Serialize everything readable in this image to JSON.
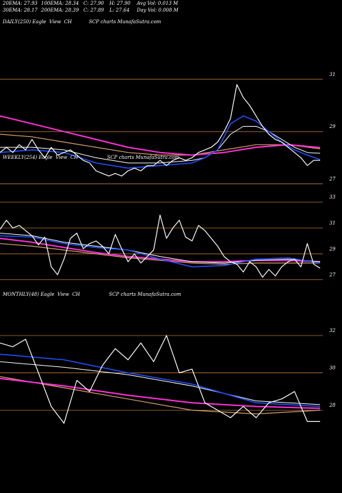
{
  "header": {
    "row1": [
      "20EMA: 27.93",
      "100EMA: 28.34",
      "C: 27.90",
      "H: 27.90",
      "Avg Vol: 0.013 M"
    ],
    "row2": [
      "30EMA: 28.17",
      "200EMA: 28.39",
      "C: 27.89",
      "L: 27.64",
      "Day Vol: 0.008 M"
    ],
    "title_left": "DAILY(250) Eagle  View  CH",
    "title_right": "SCP charts MunafaSutra.com"
  },
  "colors": {
    "background": "#000000",
    "price": "#ffffff",
    "ema20": "#1e50ff",
    "ema30": "#ffffff",
    "ema100": "#d4a06a",
    "ema200": "#ff2fd6",
    "ema_alt": "#8b5a2b",
    "gridline": "#b9773a"
  },
  "chart_data": [
    {
      "type": "line",
      "name": "daily",
      "title": "DAILY(250) Eagle  View  CH                    SCP charts MunafaSutra.com",
      "yticks": [
        31,
        29,
        27
      ],
      "ylim": [
        26.7,
        32.2
      ],
      "xlim": [
        0,
        100
      ],
      "grid": true,
      "series": [
        {
          "name": "price",
          "x": [
            0,
            2,
            4,
            6,
            8,
            10,
            12,
            14,
            16,
            18,
            20,
            22,
            24,
            26,
            28,
            30,
            32,
            34,
            36,
            38,
            40,
            42,
            44,
            46,
            48,
            50,
            52,
            54,
            56,
            58,
            60,
            62,
            64,
            66,
            68,
            70,
            72,
            74,
            76,
            78,
            80,
            82,
            84,
            86,
            88,
            90,
            92,
            94,
            96,
            98,
            100
          ],
          "y": [
            28.2,
            28.4,
            28.2,
            28.5,
            28.3,
            28.7,
            28.3,
            28.0,
            28.4,
            28.1,
            28.2,
            28.3,
            28.1,
            27.9,
            27.8,
            27.5,
            27.4,
            27.3,
            27.4,
            27.3,
            27.5,
            27.6,
            27.5,
            27.7,
            27.7,
            27.9,
            27.7,
            27.9,
            28.0,
            27.9,
            28.0,
            28.2,
            28.3,
            28.4,
            28.6,
            29.0,
            29.5,
            30.8,
            30.3,
            30.0,
            29.6,
            29.2,
            28.9,
            28.7,
            28.6,
            28.4,
            28.2,
            28.0,
            27.7,
            27.9,
            27.9
          ]
        },
        {
          "name": "ema20",
          "x": [
            0,
            10,
            20,
            30,
            40,
            50,
            60,
            64,
            68,
            72,
            76,
            80,
            84,
            88,
            92,
            96,
            100
          ],
          "y": [
            28.2,
            28.3,
            28.2,
            27.8,
            27.6,
            27.7,
            27.8,
            28.0,
            28.3,
            29.3,
            29.6,
            29.4,
            29.0,
            28.6,
            28.3,
            28.1,
            27.93
          ]
        },
        {
          "name": "ema30",
          "x": [
            0,
            10,
            20,
            30,
            40,
            50,
            60,
            64,
            68,
            72,
            76,
            80,
            84,
            88,
            92,
            96,
            100
          ],
          "y": [
            28.4,
            28.4,
            28.3,
            28.0,
            27.8,
            27.8,
            27.9,
            28.0,
            28.3,
            28.9,
            29.2,
            29.2,
            29.0,
            28.7,
            28.4,
            28.2,
            28.17
          ]
        },
        {
          "name": "ema100",
          "x": [
            0,
            10,
            20,
            30,
            40,
            50,
            60,
            70,
            80,
            90,
            100
          ],
          "y": [
            28.9,
            28.8,
            28.6,
            28.4,
            28.2,
            28.1,
            28.1,
            28.3,
            28.5,
            28.5,
            28.34
          ]
        },
        {
          "name": "ema200",
          "x": [
            0,
            10,
            20,
            30,
            40,
            50,
            60,
            70,
            80,
            90,
            100
          ],
          "y": [
            29.6,
            29.3,
            29.0,
            28.7,
            28.4,
            28.2,
            28.1,
            28.2,
            28.4,
            28.5,
            28.39
          ]
        }
      ]
    },
    {
      "type": "line",
      "name": "weekly",
      "title": "WEEKLY(254) Eagle  View  CH                   SCP charts MunafaSutra.com",
      "yticks": [
        33,
        31,
        29,
        27
      ],
      "ylim": [
        26.4,
        33.8
      ],
      "xlim": [
        0,
        100
      ],
      "grid": true,
      "series": [
        {
          "name": "price",
          "x": [
            0,
            2,
            4,
            6,
            8,
            10,
            12,
            14,
            16,
            18,
            20,
            22,
            24,
            26,
            28,
            30,
            32,
            34,
            36,
            38,
            40,
            42,
            44,
            46,
            48,
            50,
            52,
            54,
            56,
            58,
            60,
            62,
            64,
            66,
            68,
            70,
            72,
            74,
            76,
            78,
            80,
            82,
            84,
            86,
            88,
            90,
            92,
            94,
            96,
            98,
            100
          ],
          "y": [
            30.9,
            31.6,
            31.0,
            31.2,
            30.8,
            30.4,
            29.7,
            30.3,
            28.0,
            27.4,
            28.6,
            30.2,
            30.6,
            29.4,
            29.8,
            30.0,
            29.6,
            29.0,
            30.5,
            29.4,
            28.4,
            29.0,
            28.3,
            28.8,
            29.3,
            32.0,
            30.2,
            31.0,
            31.6,
            30.3,
            30.0,
            31.2,
            30.8,
            30.2,
            29.6,
            28.8,
            28.4,
            28.2,
            27.6,
            28.4,
            28.0,
            27.2,
            27.8,
            27.3,
            28.0,
            28.4,
            28.6,
            28.0,
            29.8,
            28.2,
            27.9
          ]
        },
        {
          "name": "ema20",
          "x": [
            0,
            10,
            20,
            30,
            40,
            50,
            60,
            70,
            80,
            90,
            100
          ],
          "y": [
            30.4,
            30.3,
            29.8,
            29.5,
            29.3,
            28.6,
            28.0,
            28.1,
            28.6,
            28.7,
            28.3
          ]
        },
        {
          "name": "ema30",
          "x": [
            0,
            10,
            20,
            30,
            40,
            50,
            60,
            70,
            80,
            90,
            100
          ],
          "y": [
            30.6,
            30.4,
            29.9,
            29.6,
            29.3,
            28.8,
            28.4,
            28.3,
            28.5,
            28.6,
            28.4
          ]
        },
        {
          "name": "ema100",
          "x": [
            0,
            10,
            20,
            30,
            40,
            50,
            60,
            70,
            80,
            90,
            100
          ],
          "y": [
            29.8,
            29.6,
            29.3,
            29.0,
            28.7,
            28.5,
            28.3,
            28.2,
            28.3,
            28.3,
            28.3
          ]
        },
        {
          "name": "ema200",
          "x": [
            0,
            10,
            20,
            30,
            40,
            50,
            60,
            70,
            80,
            90,
            100
          ],
          "y": [
            30.2,
            29.9,
            29.5,
            29.1,
            28.8,
            28.6,
            28.4,
            28.4,
            28.5,
            28.5,
            28.4
          ]
        }
      ]
    },
    {
      "type": "line",
      "name": "monthly",
      "title": "MONTHLY(48) Eagle  View  CH                   SCP charts MunafaSutra.com",
      "yticks": [
        32,
        30,
        28
      ],
      "ylim": [
        26.5,
        34.2
      ],
      "xlim": [
        0,
        100
      ],
      "grid": true,
      "series": [
        {
          "name": "price",
          "x": [
            0,
            4,
            8,
            12,
            16,
            20,
            24,
            28,
            32,
            36,
            40,
            44,
            48,
            52,
            56,
            60,
            64,
            68,
            72,
            76,
            80,
            84,
            88,
            92,
            96,
            100
          ],
          "y": [
            31.6,
            31.4,
            31.8,
            30.0,
            28.2,
            27.3,
            29.6,
            29.0,
            30.4,
            31.3,
            30.7,
            31.6,
            30.6,
            32.0,
            30.0,
            30.2,
            28.4,
            28.0,
            27.6,
            28.2,
            27.6,
            28.4,
            28.6,
            29.0,
            27.4,
            27.4
          ]
        },
        {
          "name": "ema20",
          "x": [
            0,
            20,
            40,
            60,
            80,
            100
          ],
          "y": [
            31.0,
            30.7,
            30.0,
            29.4,
            28.4,
            28.2
          ]
        },
        {
          "name": "ema30",
          "x": [
            0,
            20,
            40,
            60,
            80,
            100
          ],
          "y": [
            30.6,
            30.3,
            29.9,
            29.3,
            28.5,
            28.3
          ]
        },
        {
          "name": "ema100",
          "x": [
            0,
            20,
            40,
            60,
            80,
            100
          ],
          "y": [
            29.8,
            29.2,
            28.6,
            28.0,
            27.8,
            28.0
          ]
        },
        {
          "name": "ema200",
          "x": [
            0,
            20,
            40,
            60,
            80,
            100
          ],
          "y": [
            29.7,
            29.3,
            28.8,
            28.4,
            28.2,
            28.1
          ]
        }
      ]
    }
  ]
}
